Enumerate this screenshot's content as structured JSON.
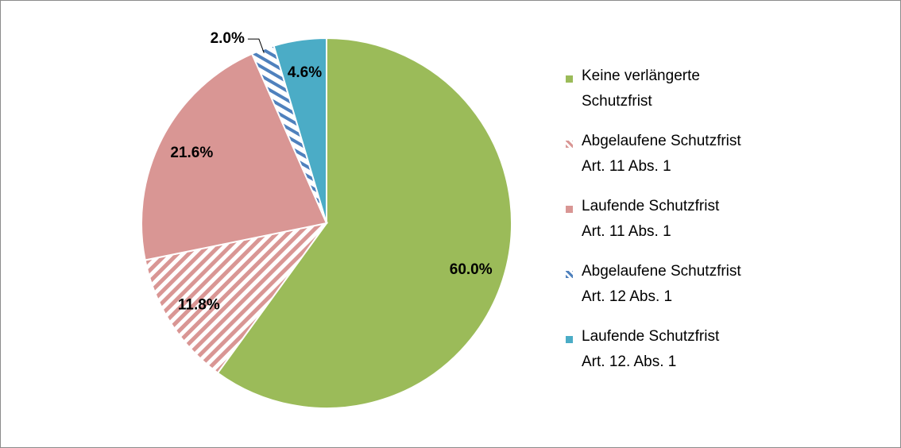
{
  "chart_data": {
    "type": "pie",
    "categories": [
      "Keine verlängerte\nSchutzfrist",
      "Abgelaufene Schutzfrist\nArt. 11 Abs. 1",
      "Laufende Schutzfrist\nArt. 11 Abs. 1",
      "Abgelaufene Schutzfrist\nArt. 12 Abs. 1",
      "Laufende Schutzfrist\nArt. 12. Abs. 1"
    ],
    "values": [
      60.0,
      11.8,
      21.6,
      2.0,
      4.6
    ],
    "value_labels": [
      "60.0%",
      "11.8%",
      "21.6%",
      "2.0%",
      "4.6%"
    ],
    "colors": [
      "#9bbb59",
      "#d99694",
      "#d99694",
      "#4f81bd",
      "#4bacc6"
    ],
    "hatched": [
      false,
      true,
      false,
      true,
      false
    ],
    "legend": "right"
  }
}
